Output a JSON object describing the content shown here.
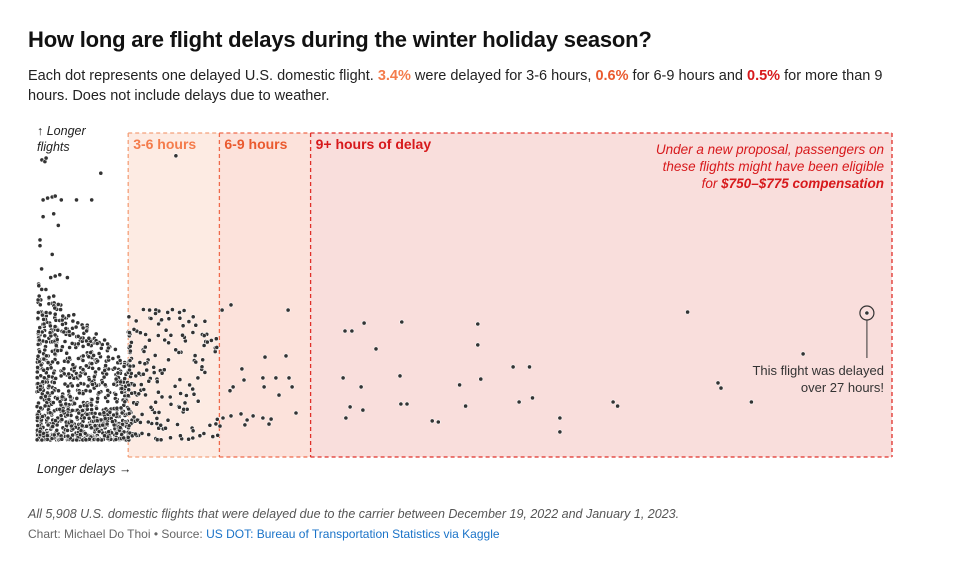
{
  "title": "How long are flight delays during the winter holiday season?",
  "subtitle": {
    "part1": "Each dot represents one delayed U.S. domestic flight. ",
    "pct_3_6": "3.4%",
    "part2": " were delayed for 3-6 hours, ",
    "pct_6_9": "0.6%",
    "part3": " for 6-9 hours and ",
    "pct_9plus": "0.5%",
    "part4": " for more than 9 hours. Does not include delays due to weather."
  },
  "chart_data": {
    "type": "scatter",
    "xlabel": "Longer delays →",
    "ylabel_line1": "↑ Longer",
    "ylabel_line2": "flights",
    "x_unit": "hours of delay",
    "xlim": [
      0,
      28.5
    ],
    "ylim": [
      0,
      100
    ],
    "zones": [
      {
        "label": "3-6 hours",
        "from": 3,
        "to": 6,
        "fill": "#fdebe3",
        "stroke": "#f4a07a",
        "text": "#f47c4c"
      },
      {
        "label": "6-9 hours",
        "from": 6,
        "to": 9,
        "fill": "#fce2db",
        "stroke": "#ef6a4b",
        "text": "#ea5a2f"
      },
      {
        "label": "9+ hours of delay",
        "from": 9,
        "to": 28.5,
        "fill": "#f9dedc",
        "stroke": "#e0302a",
        "text": "#d7191c"
      }
    ],
    "annotation_proposal": {
      "line1": "Under a new proposal, passengers on",
      "line2": "these flights might have been eligible",
      "line3_prefix": "for ",
      "line3_bold": "$750–$775 compensation"
    },
    "annotation_max": {
      "line1": "This flight was delayed",
      "line2": "over 27 hours!",
      "x": 27.3,
      "y": 43.8
    },
    "total_flights": 5908,
    "outlier_points": [
      [
        0.16,
        96.6
      ],
      [
        0.26,
        96
      ],
      [
        0.3,
        97.2
      ],
      [
        2.1,
        92
      ],
      [
        0.2,
        82.8
      ],
      [
        0.35,
        83.4
      ],
      [
        0.5,
        83.8
      ],
      [
        0.6,
        84.1
      ],
      [
        0.8,
        82.8
      ],
      [
        1.3,
        82.8
      ],
      [
        1.8,
        82.8
      ],
      [
        0.2,
        77
      ],
      [
        0.55,
        78
      ],
      [
        0.7,
        74
      ],
      [
        0.1,
        69
      ],
      [
        0.1,
        67
      ],
      [
        0.5,
        64
      ],
      [
        0.15,
        59
      ],
      [
        0.45,
        56
      ],
      [
        0.6,
        56.5
      ],
      [
        0.75,
        57
      ],
      [
        1.0,
        56
      ],
      [
        4.57,
        98
      ],
      [
        3.5,
        45
      ],
      [
        4.3,
        44
      ],
      [
        4.0,
        40
      ],
      [
        4.7,
        42
      ],
      [
        5.5,
        36
      ],
      [
        3.4,
        37
      ],
      [
        6.09,
        44.8
      ],
      [
        6.38,
        46.6
      ],
      [
        8.26,
        44.8
      ],
      [
        7.5,
        28.6
      ],
      [
        8.19,
        29
      ],
      [
        6.74,
        24.5
      ],
      [
        6.81,
        20.7
      ],
      [
        7.43,
        21.4
      ],
      [
        7.86,
        21.4
      ],
      [
        8.29,
        21.4
      ],
      [
        7.47,
        18.3
      ],
      [
        8.39,
        18.3
      ],
      [
        7.96,
        15.5
      ],
      [
        8.52,
        9.3
      ],
      [
        6.12,
        7.6
      ],
      [
        6.38,
        8.3
      ],
      [
        6.71,
        9
      ],
      [
        6.91,
        6.9
      ],
      [
        7.11,
        8.3
      ],
      [
        7.43,
        7.6
      ],
      [
        7.7,
        7.2
      ],
      [
        7.63,
        5.5
      ],
      [
        6.84,
        5.2
      ],
      [
        6.02,
        4.8
      ],
      [
        6.45,
        18.3
      ],
      [
        6.35,
        17
      ],
      [
        10.13,
        37.6
      ],
      [
        10.36,
        37.6
      ],
      [
        10.76,
        40.3
      ],
      [
        11.15,
        31.4
      ],
      [
        12.0,
        40.7
      ],
      [
        14.5,
        40
      ],
      [
        14.5,
        32.8
      ],
      [
        10.07,
        21.4
      ],
      [
        10.66,
        18.3
      ],
      [
        11.94,
        22.1
      ],
      [
        13.9,
        19
      ],
      [
        14.6,
        21
      ],
      [
        15.66,
        25.2
      ],
      [
        16.2,
        25.2
      ],
      [
        10.3,
        11.4
      ],
      [
        10.16,
        7.6
      ],
      [
        10.72,
        10.3
      ],
      [
        11.97,
        12.4
      ],
      [
        12.17,
        12.4
      ],
      [
        13.0,
        6.6
      ],
      [
        13.2,
        6.2
      ],
      [
        14.1,
        11.7
      ],
      [
        15.86,
        13.1
      ],
      [
        16.3,
        14.5
      ],
      [
        17.2,
        7.6
      ],
      [
        17.2,
        2.8
      ],
      [
        18.95,
        13.1
      ],
      [
        19.1,
        11.7
      ],
      [
        21.4,
        44.1
      ],
      [
        22.4,
        19.7
      ],
      [
        22.5,
        17.9
      ],
      [
        23.5,
        13.1
      ],
      [
        25.2,
        29.7
      ],
      [
        27.3,
        43.8
      ]
    ],
    "dense_clusters": [
      {
        "x_range": [
          0,
          3
        ],
        "y_range": [
          0,
          55
        ],
        "count": 900
      },
      {
        "x_range": [
          3,
          6
        ],
        "y_range": [
          0,
          45
        ],
        "count": 200
      }
    ]
  },
  "footnote": "All 5,908 U.S. domestic flights that were delayed due to the carrier between December 19, 2022 and January 1, 2023.",
  "source": {
    "prefix": "Chart: Michael Do Thoi • Source: ",
    "link": "US DOT: Bureau of Transportation Statistics via Kaggle"
  },
  "colors": {
    "dot": "#333333",
    "dot_stroke": "#ffffff"
  }
}
